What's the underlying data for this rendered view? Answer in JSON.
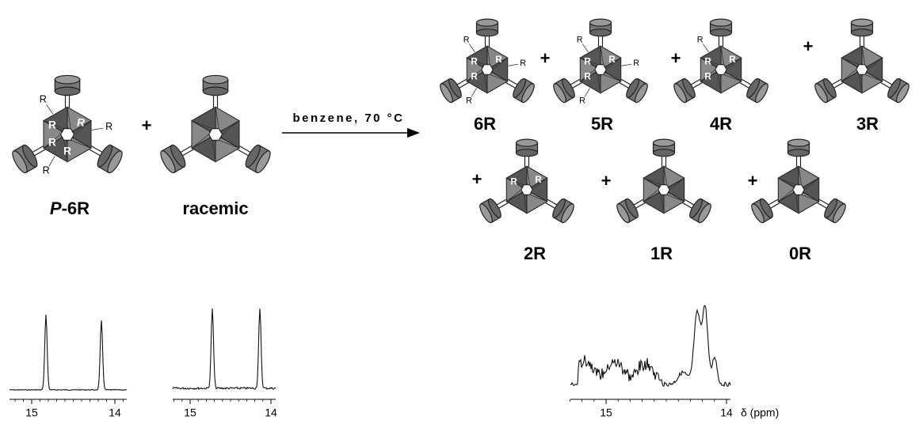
{
  "reaction": {
    "plus_left": "+",
    "conditions": "benzene, 70 °C"
  },
  "reactants": [
    {
      "label_italic": "P",
      "label": "-6R",
      "outer_r": [
        "R",
        "R",
        "R"
      ],
      "inner_r": [
        "R",
        "R",
        "R",
        "R"
      ]
    },
    {
      "label": "racemic",
      "outer_r": [],
      "inner_r": []
    }
  ],
  "products": [
    {
      "label": "6R",
      "outer_r": [
        "R",
        "R",
        "R"
      ],
      "inner_r": [
        "R",
        "R",
        "R"
      ]
    },
    {
      "label": "5R",
      "outer_r": [
        "R",
        "R",
        "R"
      ],
      "inner_r": [
        "R",
        "R",
        "R"
      ]
    },
    {
      "label": "4R",
      "outer_r": [
        "R"
      ],
      "inner_r": [
        "R",
        "R",
        "R"
      ]
    },
    {
      "label": "3R",
      "outer_r": [],
      "inner_r": []
    },
    {
      "label": "2R",
      "outer_r": [],
      "inner_r": [
        "R",
        "R"
      ]
    },
    {
      "label": "1R",
      "outer_r": [],
      "inner_r": []
    },
    {
      "label": "0R",
      "outer_r": [],
      "inner_r": []
    }
  ],
  "plus_signs": [
    "+",
    "+",
    "+",
    "+",
    "+",
    "+"
  ],
  "spectra": [
    {
      "ticks": [
        "15",
        "14"
      ]
    },
    {
      "ticks": [
        "15",
        "14"
      ]
    },
    {
      "ticks": [
        "15",
        "14"
      ],
      "axis_label": "δ (ppm)"
    }
  ]
}
